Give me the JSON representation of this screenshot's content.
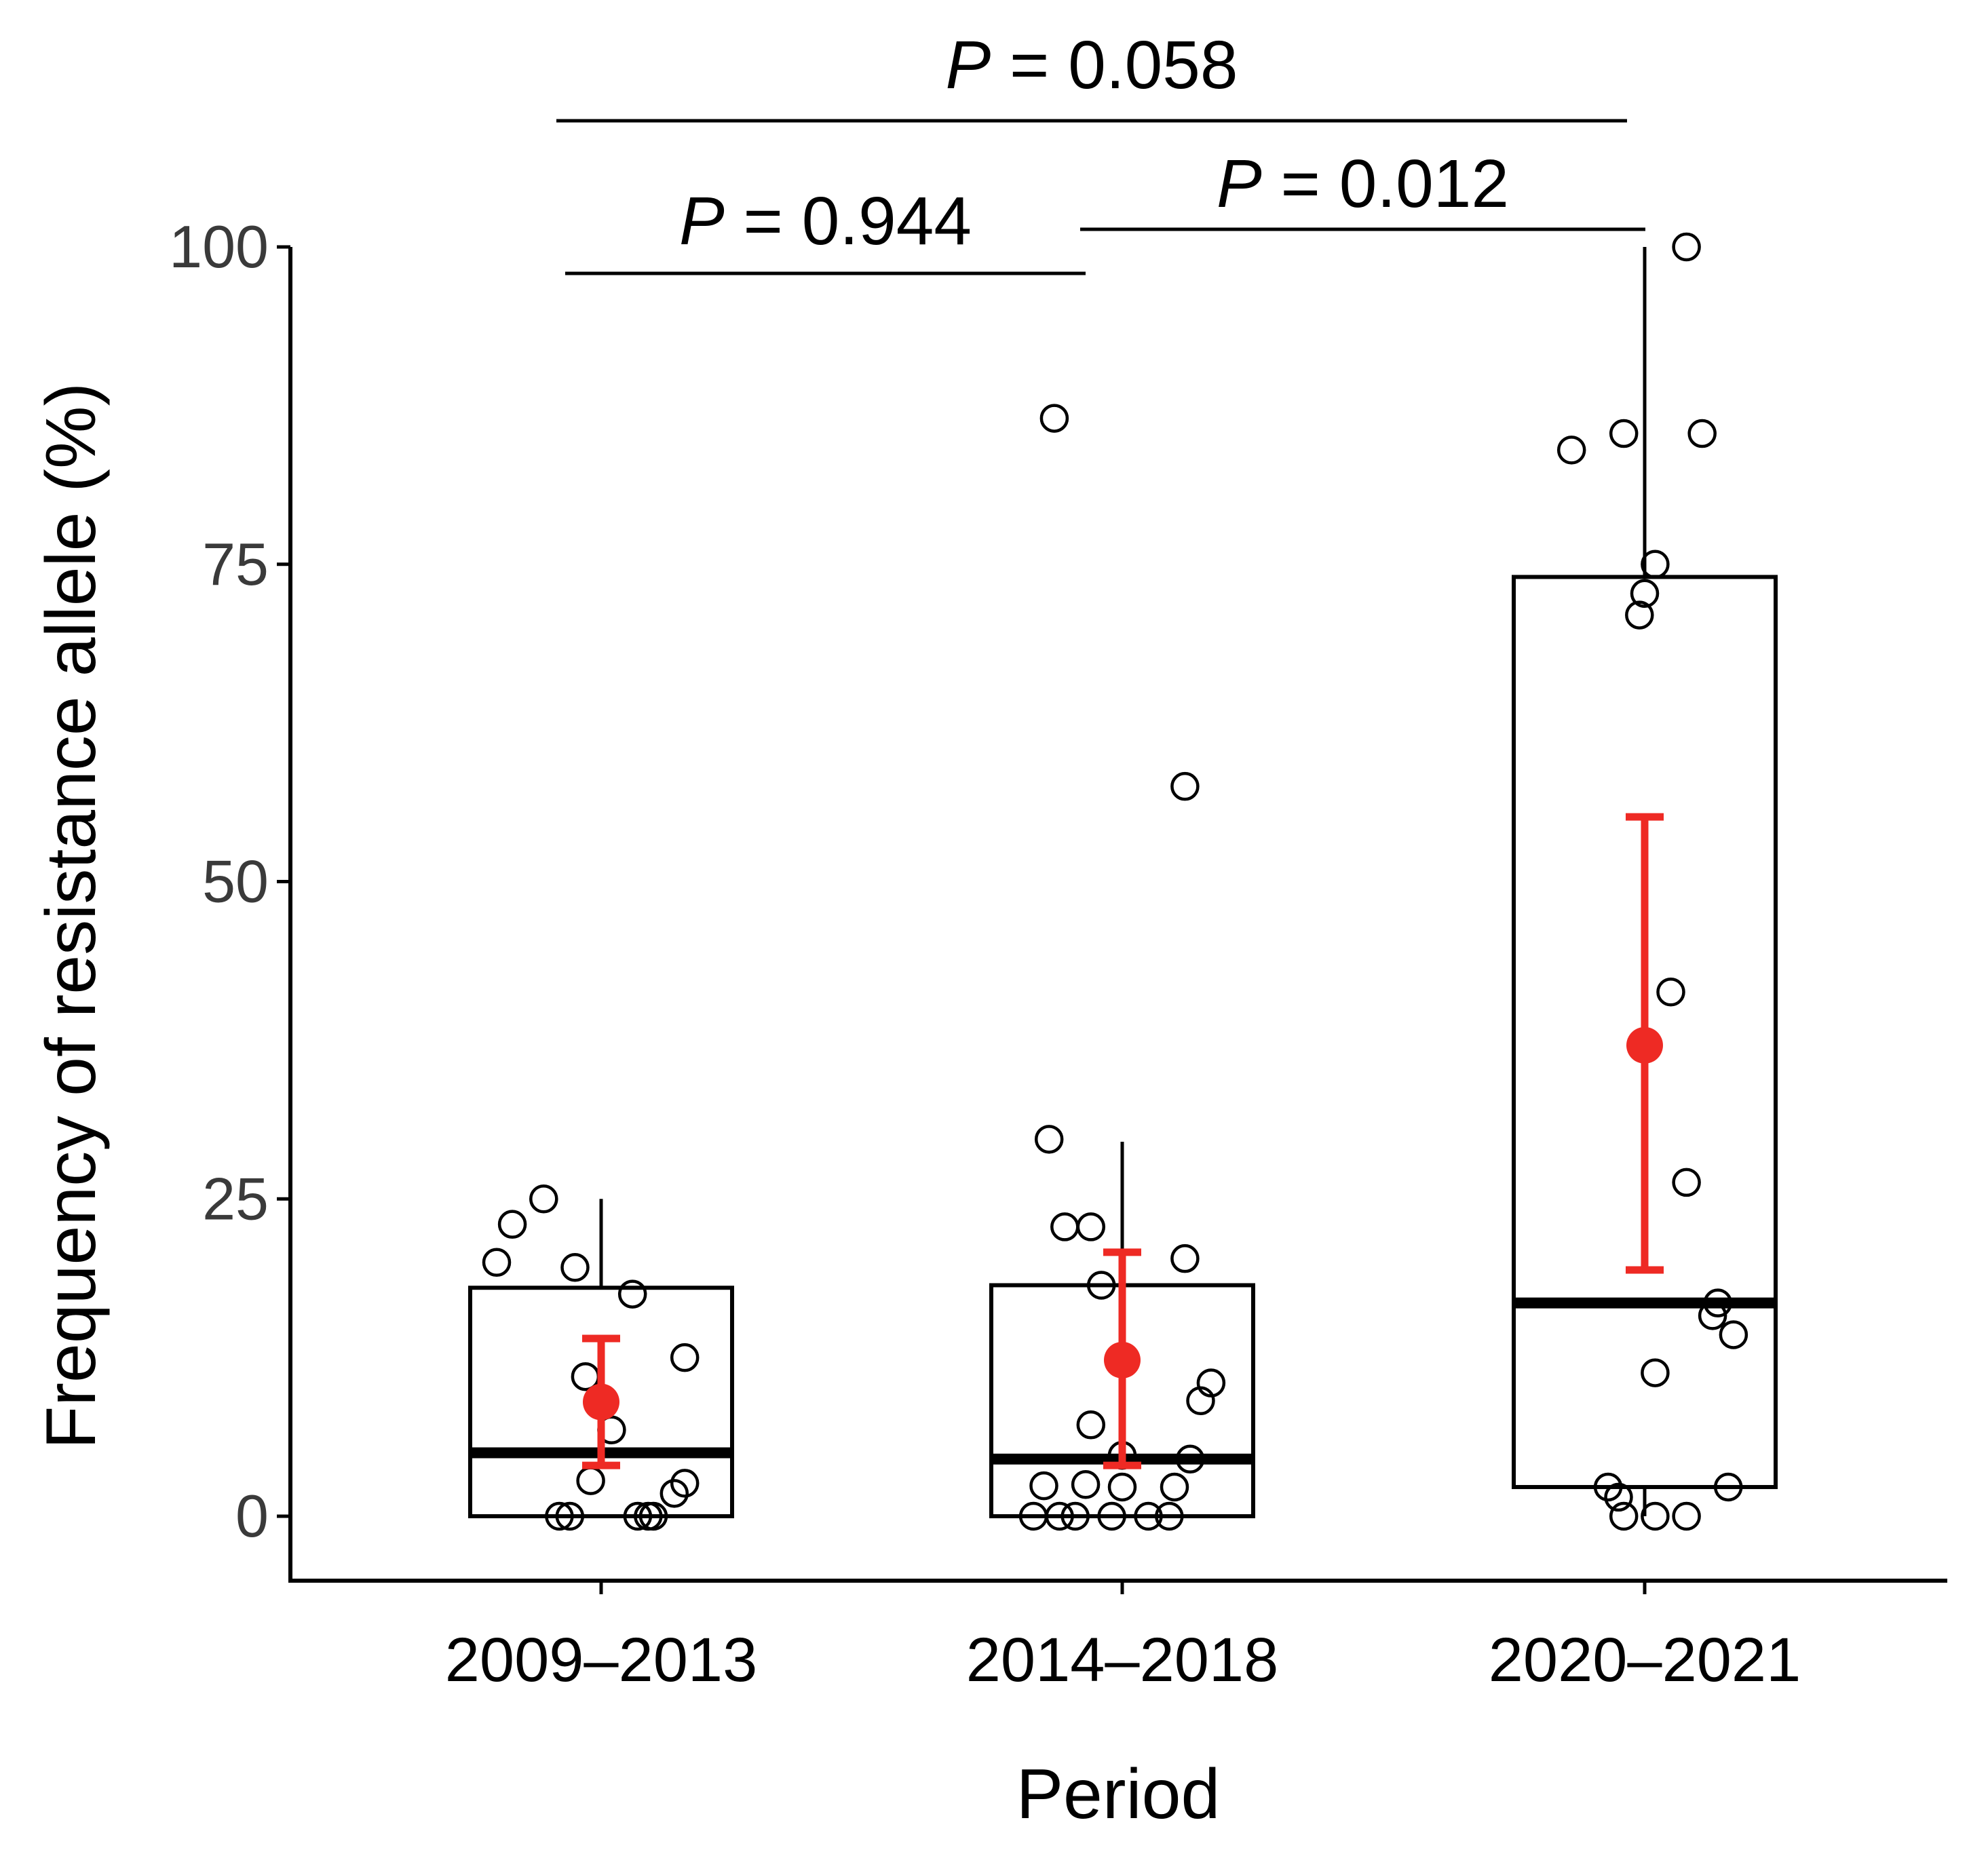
{
  "chart_data": {
    "type": "boxplot",
    "title": "",
    "xlabel": "Period",
    "ylabel": "Frequency of resistance allele  (%)",
    "ylim": [
      -10,
      100
    ],
    "yticks": [
      0,
      25,
      50,
      75,
      100
    ],
    "grid": false,
    "legend": "none",
    "colors": {
      "box": "#000000",
      "points": "#000000",
      "mean": "#ee2a24"
    },
    "categories": [
      "2009–2013",
      "2014–2018",
      "2020–2021"
    ],
    "boxes": [
      {
        "category": "2009–2013",
        "q1": 0,
        "median": 5,
        "q3": 18,
        "whisker_low": 0,
        "whisker_high": 25,
        "mean": 9,
        "ci_low": 4,
        "ci_high": 14
      },
      {
        "category": "2014–2018",
        "q1": 0,
        "median": 4.5,
        "q3": 18.2,
        "whisker_low": 0,
        "whisker_high": 29.5,
        "mean": 12.3,
        "ci_low": 4,
        "ci_high": 20.8
      },
      {
        "category": "2020–2021",
        "q1": 2.3,
        "median": 16.8,
        "q3": 74,
        "whisker_low": 0,
        "whisker_high": 100,
        "mean": 37.1,
        "ci_low": 19.4,
        "ci_high": 55.1
      }
    ],
    "points": [
      [
        {
          "x": -0.2,
          "y": 20
        },
        {
          "x": -0.17,
          "y": 23
        },
        {
          "x": -0.11,
          "y": 25
        },
        {
          "x": -0.05,
          "y": 19.6
        },
        {
          "x": 0.06,
          "y": 17.5
        },
        {
          "x": 0.16,
          "y": 12.5
        },
        {
          "x": -0.03,
          "y": 11
        },
        {
          "x": 0.02,
          "y": 6.8
        },
        {
          "x": -0.02,
          "y": 2.8
        },
        {
          "x": 0.16,
          "y": 2.6
        },
        {
          "x": 0.14,
          "y": 1.8
        },
        {
          "x": -0.08,
          "y": 0
        },
        {
          "x": -0.06,
          "y": 0
        },
        {
          "x": 0.07,
          "y": 0
        },
        {
          "x": 0.09,
          "y": 0
        },
        {
          "x": 0.1,
          "y": 0
        }
      ],
      [
        {
          "x": -0.13,
          "y": 86.5
        },
        {
          "x": 0.12,
          "y": 57.5
        },
        {
          "x": -0.14,
          "y": 29.7
        },
        {
          "x": -0.11,
          "y": 22.8
        },
        {
          "x": -0.06,
          "y": 22.8
        },
        {
          "x": 0.12,
          "y": 20.3
        },
        {
          "x": -0.04,
          "y": 18.2
        },
        {
          "x": 0.17,
          "y": 10.5
        },
        {
          "x": 0.15,
          "y": 9.1
        },
        {
          "x": -0.06,
          "y": 7.2
        },
        {
          "x": 0.13,
          "y": 4.5
        },
        {
          "x": 0,
          "y": 4.8
        },
        {
          "x": -0.15,
          "y": 2.4
        },
        {
          "x": -0.07,
          "y": 2.5
        },
        {
          "x": 0,
          "y": 2.3
        },
        {
          "x": 0.1,
          "y": 2.3
        },
        {
          "x": -0.17,
          "y": 0
        },
        {
          "x": -0.12,
          "y": 0
        },
        {
          "x": -0.09,
          "y": 0
        },
        {
          "x": -0.02,
          "y": 0
        },
        {
          "x": 0.05,
          "y": 0
        },
        {
          "x": 0.09,
          "y": 0
        }
      ],
      [
        {
          "x": 0.08,
          "y": 100
        },
        {
          "x": -0.14,
          "y": 84
        },
        {
          "x": -0.04,
          "y": 85.3
        },
        {
          "x": 0.11,
          "y": 85.3
        },
        {
          "x": 0.02,
          "y": 75
        },
        {
          "x": 0,
          "y": 72.7
        },
        {
          "x": -0.01,
          "y": 71
        },
        {
          "x": 0.05,
          "y": 41.3
        },
        {
          "x": 0.08,
          "y": 26.3
        },
        {
          "x": 0.14,
          "y": 16.8
        },
        {
          "x": 0.13,
          "y": 15.8
        },
        {
          "x": 0.17,
          "y": 14.3
        },
        {
          "x": 0.02,
          "y": 11.3
        },
        {
          "x": -0.07,
          "y": 2.3
        },
        {
          "x": -0.05,
          "y": 1.5
        },
        {
          "x": 0.16,
          "y": 2.3
        },
        {
          "x": -0.04,
          "y": 0
        },
        {
          "x": 0.02,
          "y": 0
        },
        {
          "x": 0.08,
          "y": 0
        }
      ]
    ],
    "comparisons": [
      {
        "from": 0,
        "to": 2,
        "label": "P = 0.058",
        "p_letter": "P",
        "p_rest": " = 0.058"
      },
      {
        "from": 0,
        "to": 1,
        "label": "P = 0.944",
        "p_letter": "P",
        "p_rest": " = 0.944"
      },
      {
        "from": 1,
        "to": 2,
        "label": "P = 0.012",
        "p_letter": "P",
        "p_rest": " = 0.012"
      }
    ]
  }
}
